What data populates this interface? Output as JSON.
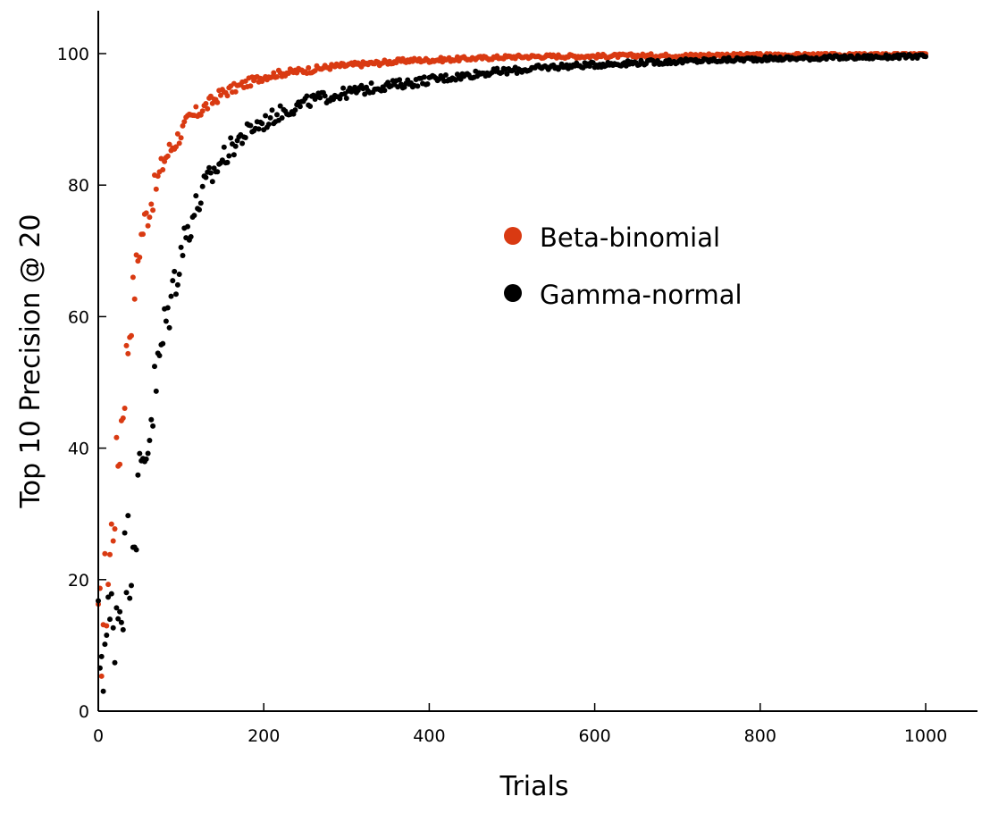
{
  "chart_data": {
    "type": "scatter",
    "title": "",
    "xlabel": "Trials",
    "ylabel": "Top 10 Precision @ 20",
    "xlim": [
      0,
      1000
    ],
    "ylim": [
      0,
      100
    ],
    "xticks": [
      0,
      200,
      400,
      600,
      800,
      1000
    ],
    "yticks": [
      0,
      20,
      40,
      60,
      80,
      100
    ],
    "xtick_labels": [
      "0",
      "200",
      "400",
      "600",
      "800",
      "1000"
    ],
    "ytick_labels": [
      "0",
      "20",
      "40",
      "60",
      "80",
      "100"
    ],
    "grid": false,
    "legend_position": "center-right",
    "series": [
      {
        "name": "Beta-binomial",
        "color": "#d93a12",
        "x": [
          0,
          5,
          10,
          15,
          20,
          25,
          30,
          35,
          40,
          45,
          50,
          55,
          60,
          65,
          70,
          75,
          80,
          85,
          90,
          95,
          100,
          110,
          120,
          130,
          140,
          150,
          160,
          170,
          180,
          190,
          200,
          220,
          240,
          260,
          280,
          300,
          320,
          340,
          360,
          380,
          400,
          420,
          440,
          460,
          480,
          500,
          550,
          600,
          650,
          700,
          750,
          800,
          850,
          900,
          950,
          1000
        ],
        "y": [
          9,
          14,
          19,
          25,
          33,
          40,
          47,
          55,
          61,
          66,
          71,
          74,
          76,
          78,
          80,
          82,
          84,
          85,
          86,
          87,
          88,
          90,
          91,
          92,
          93,
          94,
          94.5,
          95,
          95.5,
          96,
          96.5,
          97,
          97.3,
          97.6,
          98,
          98.2,
          98.4,
          98.6,
          98.8,
          99,
          99,
          99.1,
          99.2,
          99.3,
          99.4,
          99.5,
          99.6,
          99.6,
          99.7,
          99.7,
          99.8,
          99.8,
          99.8,
          99.8,
          99.9,
          99.9
        ]
      },
      {
        "name": "Gamma-normal",
        "color": "#000000",
        "x": [
          0,
          5,
          10,
          15,
          20,
          25,
          30,
          35,
          40,
          45,
          50,
          55,
          60,
          65,
          70,
          75,
          80,
          85,
          90,
          95,
          100,
          110,
          120,
          130,
          140,
          150,
          160,
          170,
          180,
          190,
          200,
          220,
          240,
          260,
          280,
          300,
          320,
          340,
          360,
          380,
          400,
          420,
          440,
          460,
          480,
          500,
          550,
          600,
          650,
          700,
          750,
          800,
          850,
          900,
          950,
          1000
        ],
        "y": [
          9,
          10,
          11,
          13,
          15,
          17,
          20,
          23,
          26,
          30,
          34,
          38,
          42,
          46,
          50,
          54,
          58,
          61,
          64,
          67,
          70,
          74,
          77,
          80,
          82,
          84,
          85.5,
          87,
          88,
          89,
          89.5,
          91,
          92,
          93,
          93.5,
          94,
          94.5,
          95,
          95.3,
          95.6,
          96,
          96.3,
          96.6,
          97,
          97.2,
          97.4,
          98,
          98.3,
          98.6,
          98.8,
          99,
          99.2,
          99.3,
          99.4,
          99.5,
          99.6
        ]
      }
    ]
  }
}
